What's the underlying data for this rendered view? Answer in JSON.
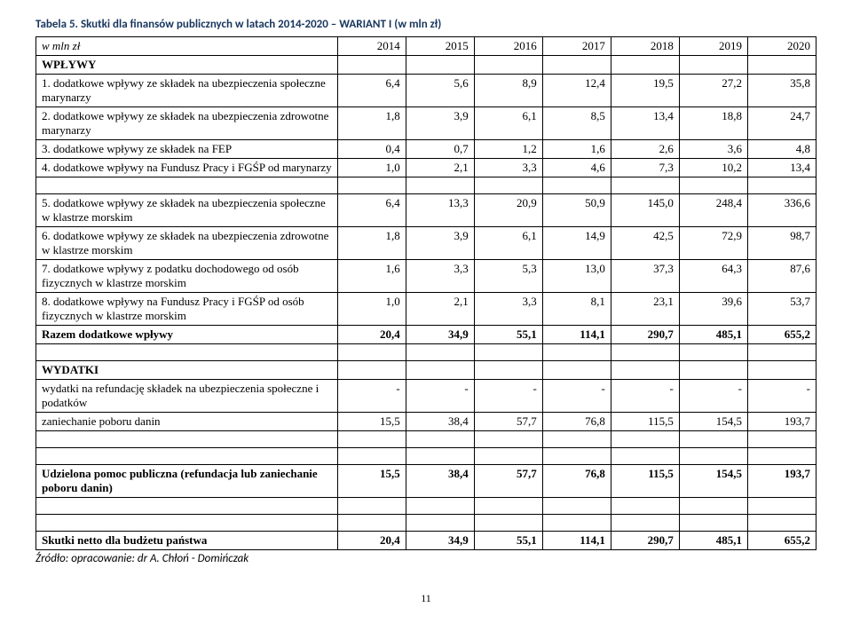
{
  "caption": "Tabela 5. Skutki dla finansów publicznych w latach 2014-2020 – WARIANT I (w mln zł)",
  "header": {
    "label": "w mln zł",
    "years": [
      "2014",
      "2015",
      "2016",
      "2017",
      "2018",
      "2019",
      "2020"
    ]
  },
  "sections": {
    "wplywy_title": "WPŁYWY",
    "rows_a": [
      {
        "label": "1. dodatkowe wpływy ze składek na ubezpieczenia społeczne marynarzy",
        "v": [
          "6,4",
          "5,6",
          "8,9",
          "12,4",
          "19,5",
          "27,2",
          "35,8"
        ]
      },
      {
        "label": "2. dodatkowe wpływy ze składek na ubezpieczenia zdrowotne marynarzy",
        "v": [
          "1,8",
          "3,9",
          "6,1",
          "8,5",
          "13,4",
          "18,8",
          "24,7"
        ]
      },
      {
        "label": "3. dodatkowe wpływy ze składek na FEP",
        "v": [
          "0,4",
          "0,7",
          "1,2",
          "1,6",
          "2,6",
          "3,6",
          "4,8"
        ]
      },
      {
        "label": "4. dodatkowe wpływy na Fundusz Pracy i FGŚP od marynarzy",
        "v": [
          "1,0",
          "2,1",
          "3,3",
          "4,6",
          "7,3",
          "10,2",
          "13,4"
        ]
      }
    ],
    "rows_b": [
      {
        "label": "5. dodatkowe wpływy ze składek na ubezpieczenia społeczne w klastrze morskim",
        "v": [
          "6,4",
          "13,3",
          "20,9",
          "50,9",
          "145,0",
          "248,4",
          "336,6"
        ]
      },
      {
        "label": "6. dodatkowe wpływy ze składek na ubezpieczenia zdrowotne w klastrze morskim",
        "v": [
          "1,8",
          "3,9",
          "6,1",
          "14,9",
          "42,5",
          "72,9",
          "98,7"
        ]
      },
      {
        "label": "7. dodatkowe wpływy z podatku dochodowego od osób fizycznych w klastrze morskim",
        "v": [
          "1,6",
          "3,3",
          "5,3",
          "13,0",
          "37,3",
          "64,3",
          "87,6"
        ]
      },
      {
        "label": "8. dodatkowe wpływy na Fundusz Pracy i FGŚP od osób fizycznych w klastrze morskim",
        "v": [
          "1,0",
          "2,1",
          "3,3",
          "8,1",
          "23,1",
          "39,6",
          "53,7"
        ]
      }
    ],
    "razem": {
      "label": "Razem dodatkowe wpływy",
      "v": [
        "20,4",
        "34,9",
        "55,1",
        "114,1",
        "290,7",
        "485,1",
        "655,2"
      ]
    },
    "wydatki_title": "WYDATKI",
    "wydatki_rows": [
      {
        "label": "wydatki na refundację składek na ubezpieczenia społeczne i podatków",
        "v": [
          "-",
          "-",
          "-",
          "-",
          "-",
          "-",
          "-"
        ]
      },
      {
        "label": "zaniechanie poboru danin",
        "v": [
          "15,5",
          "38,4",
          "57,7",
          "76,8",
          "115,5",
          "154,5",
          "193,7"
        ]
      }
    ],
    "pomoc": {
      "label": "Udzielona pomoc publiczna (refundacja lub zaniechanie poboru danin)",
      "v": [
        "15,5",
        "38,4",
        "57,7",
        "76,8",
        "115,5",
        "154,5",
        "193,7"
      ]
    },
    "skutki": {
      "label": "Skutki netto dla budżetu państwa",
      "v": [
        "20,4",
        "34,9",
        "55,1",
        "114,1",
        "290,7",
        "485,1",
        "655,2"
      ]
    }
  },
  "source": "Źródło: opracowanie: dr A. Chłoń - Domińczak",
  "page": "11",
  "colors": {
    "caption": "#17365d",
    "border": "#000000",
    "text": "#000000",
    "bg": "#ffffff"
  },
  "typography": {
    "body_family": "Times New Roman",
    "caption_family": "Calibri",
    "body_size": 13
  }
}
